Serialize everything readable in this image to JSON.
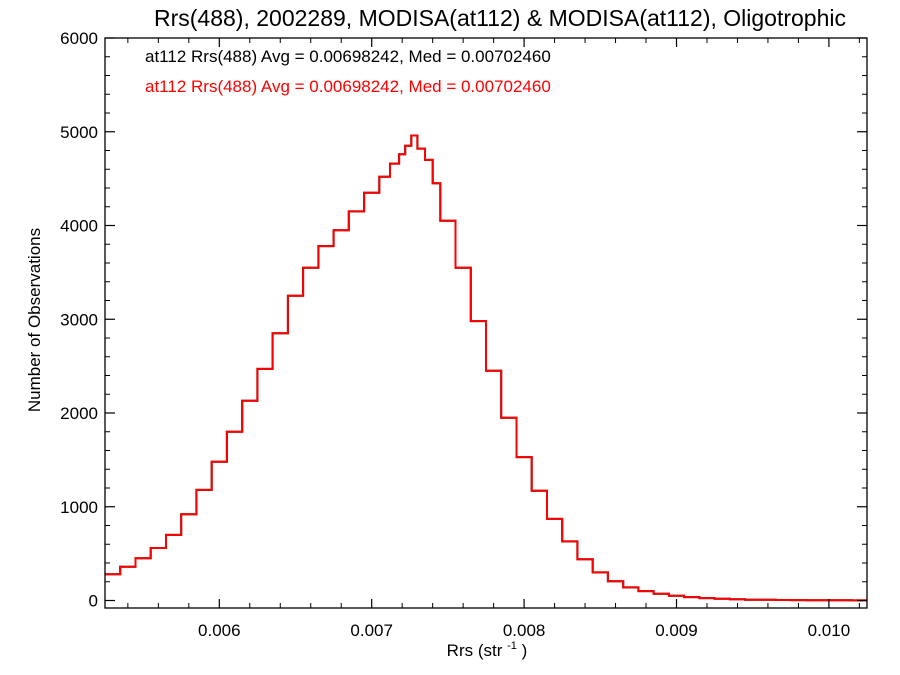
{
  "chart_data": {
    "type": "line",
    "title": "Rrs(488), 2002289, MODISA(at112) & MODISA(at112), Oligotrophic",
    "xlabel": "Rrs (str",
    "xlabel_superscript": "-1",
    "xlabel_suffix": ")",
    "ylabel": "Number of Observations",
    "xlim": [
      0.00525,
      0.01025
    ],
    "ylim": [
      -80,
      6000
    ],
    "x_ticks": [
      0.006,
      0.007,
      0.008,
      0.009,
      0.01
    ],
    "x_tick_labels": [
      "0.006",
      "0.007",
      "0.008",
      "0.009",
      "0.010"
    ],
    "y_ticks": [
      0,
      1000,
      2000,
      3000,
      4000,
      5000,
      6000
    ],
    "y_tick_labels": [
      "0",
      "1000",
      "2000",
      "3000",
      "4000",
      "5000",
      "6000"
    ],
    "grid": false,
    "annotations": [
      {
        "text": "at112 Rrs(488) Avg = 0.00698242, Med = 0.00702460",
        "color": "#000000"
      },
      {
        "text": "at112 Rrs(488) Avg = 0.00698242, Med = 0.00702460",
        "color": "#ff0000"
      }
    ],
    "series": [
      {
        "color": "#000000",
        "style": "step",
        "x": [
          0.00525,
          0.00535,
          0.00545,
          0.00555,
          0.00565,
          0.00575,
          0.00585,
          0.00595,
          0.00605,
          0.00615,
          0.00625,
          0.00635,
          0.00645,
          0.00655,
          0.00665,
          0.00675,
          0.00685,
          0.00695,
          0.00705,
          0.00712,
          0.00718,
          0.00722,
          0.00726,
          0.0073,
          0.00735,
          0.0074,
          0.00745,
          0.00755,
          0.00765,
          0.00775,
          0.00785,
          0.00795,
          0.00805,
          0.00815,
          0.00825,
          0.00835,
          0.00845,
          0.00855,
          0.00865,
          0.00875,
          0.00885,
          0.00895,
          0.00905,
          0.00915,
          0.00925,
          0.00935,
          0.00945,
          0.00955,
          0.00965,
          0.00975,
          0.00985,
          0.00995,
          0.01005,
          0.01015,
          0.01025
        ],
        "y": [
          280,
          360,
          450,
          560,
          700,
          920,
          1180,
          1480,
          1800,
          2130,
          2470,
          2850,
          3250,
          3550,
          3780,
          3950,
          4150,
          4350,
          4520,
          4660,
          4760,
          4850,
          4960,
          4820,
          4700,
          4450,
          4050,
          3550,
          2980,
          2450,
          1950,
          1530,
          1170,
          870,
          630,
          440,
          300,
          205,
          140,
          100,
          72,
          50,
          36,
          26,
          18,
          13,
          9,
          7,
          5,
          4,
          3,
          2,
          2,
          1,
          1
        ]
      },
      {
        "color": "#ff0000",
        "style": "step",
        "x": [
          0.00525,
          0.00535,
          0.00545,
          0.00555,
          0.00565,
          0.00575,
          0.00585,
          0.00595,
          0.00605,
          0.00615,
          0.00625,
          0.00635,
          0.00645,
          0.00655,
          0.00665,
          0.00675,
          0.00685,
          0.00695,
          0.00705,
          0.00712,
          0.00718,
          0.00722,
          0.00726,
          0.0073,
          0.00735,
          0.0074,
          0.00745,
          0.00755,
          0.00765,
          0.00775,
          0.00785,
          0.00795,
          0.00805,
          0.00815,
          0.00825,
          0.00835,
          0.00845,
          0.00855,
          0.00865,
          0.00875,
          0.00885,
          0.00895,
          0.00905,
          0.00915,
          0.00925,
          0.00935,
          0.00945,
          0.00955,
          0.00965,
          0.00975,
          0.00985,
          0.00995,
          0.01005,
          0.01015,
          0.01025
        ],
        "y": [
          280,
          360,
          450,
          560,
          700,
          920,
          1180,
          1480,
          1800,
          2130,
          2470,
          2850,
          3250,
          3550,
          3780,
          3950,
          4150,
          4350,
          4520,
          4660,
          4760,
          4850,
          4960,
          4820,
          4700,
          4450,
          4050,
          3550,
          2980,
          2450,
          1950,
          1530,
          1170,
          870,
          630,
          440,
          300,
          205,
          140,
          100,
          72,
          50,
          36,
          26,
          18,
          13,
          9,
          7,
          5,
          4,
          3,
          2,
          2,
          1,
          1
        ]
      }
    ]
  }
}
